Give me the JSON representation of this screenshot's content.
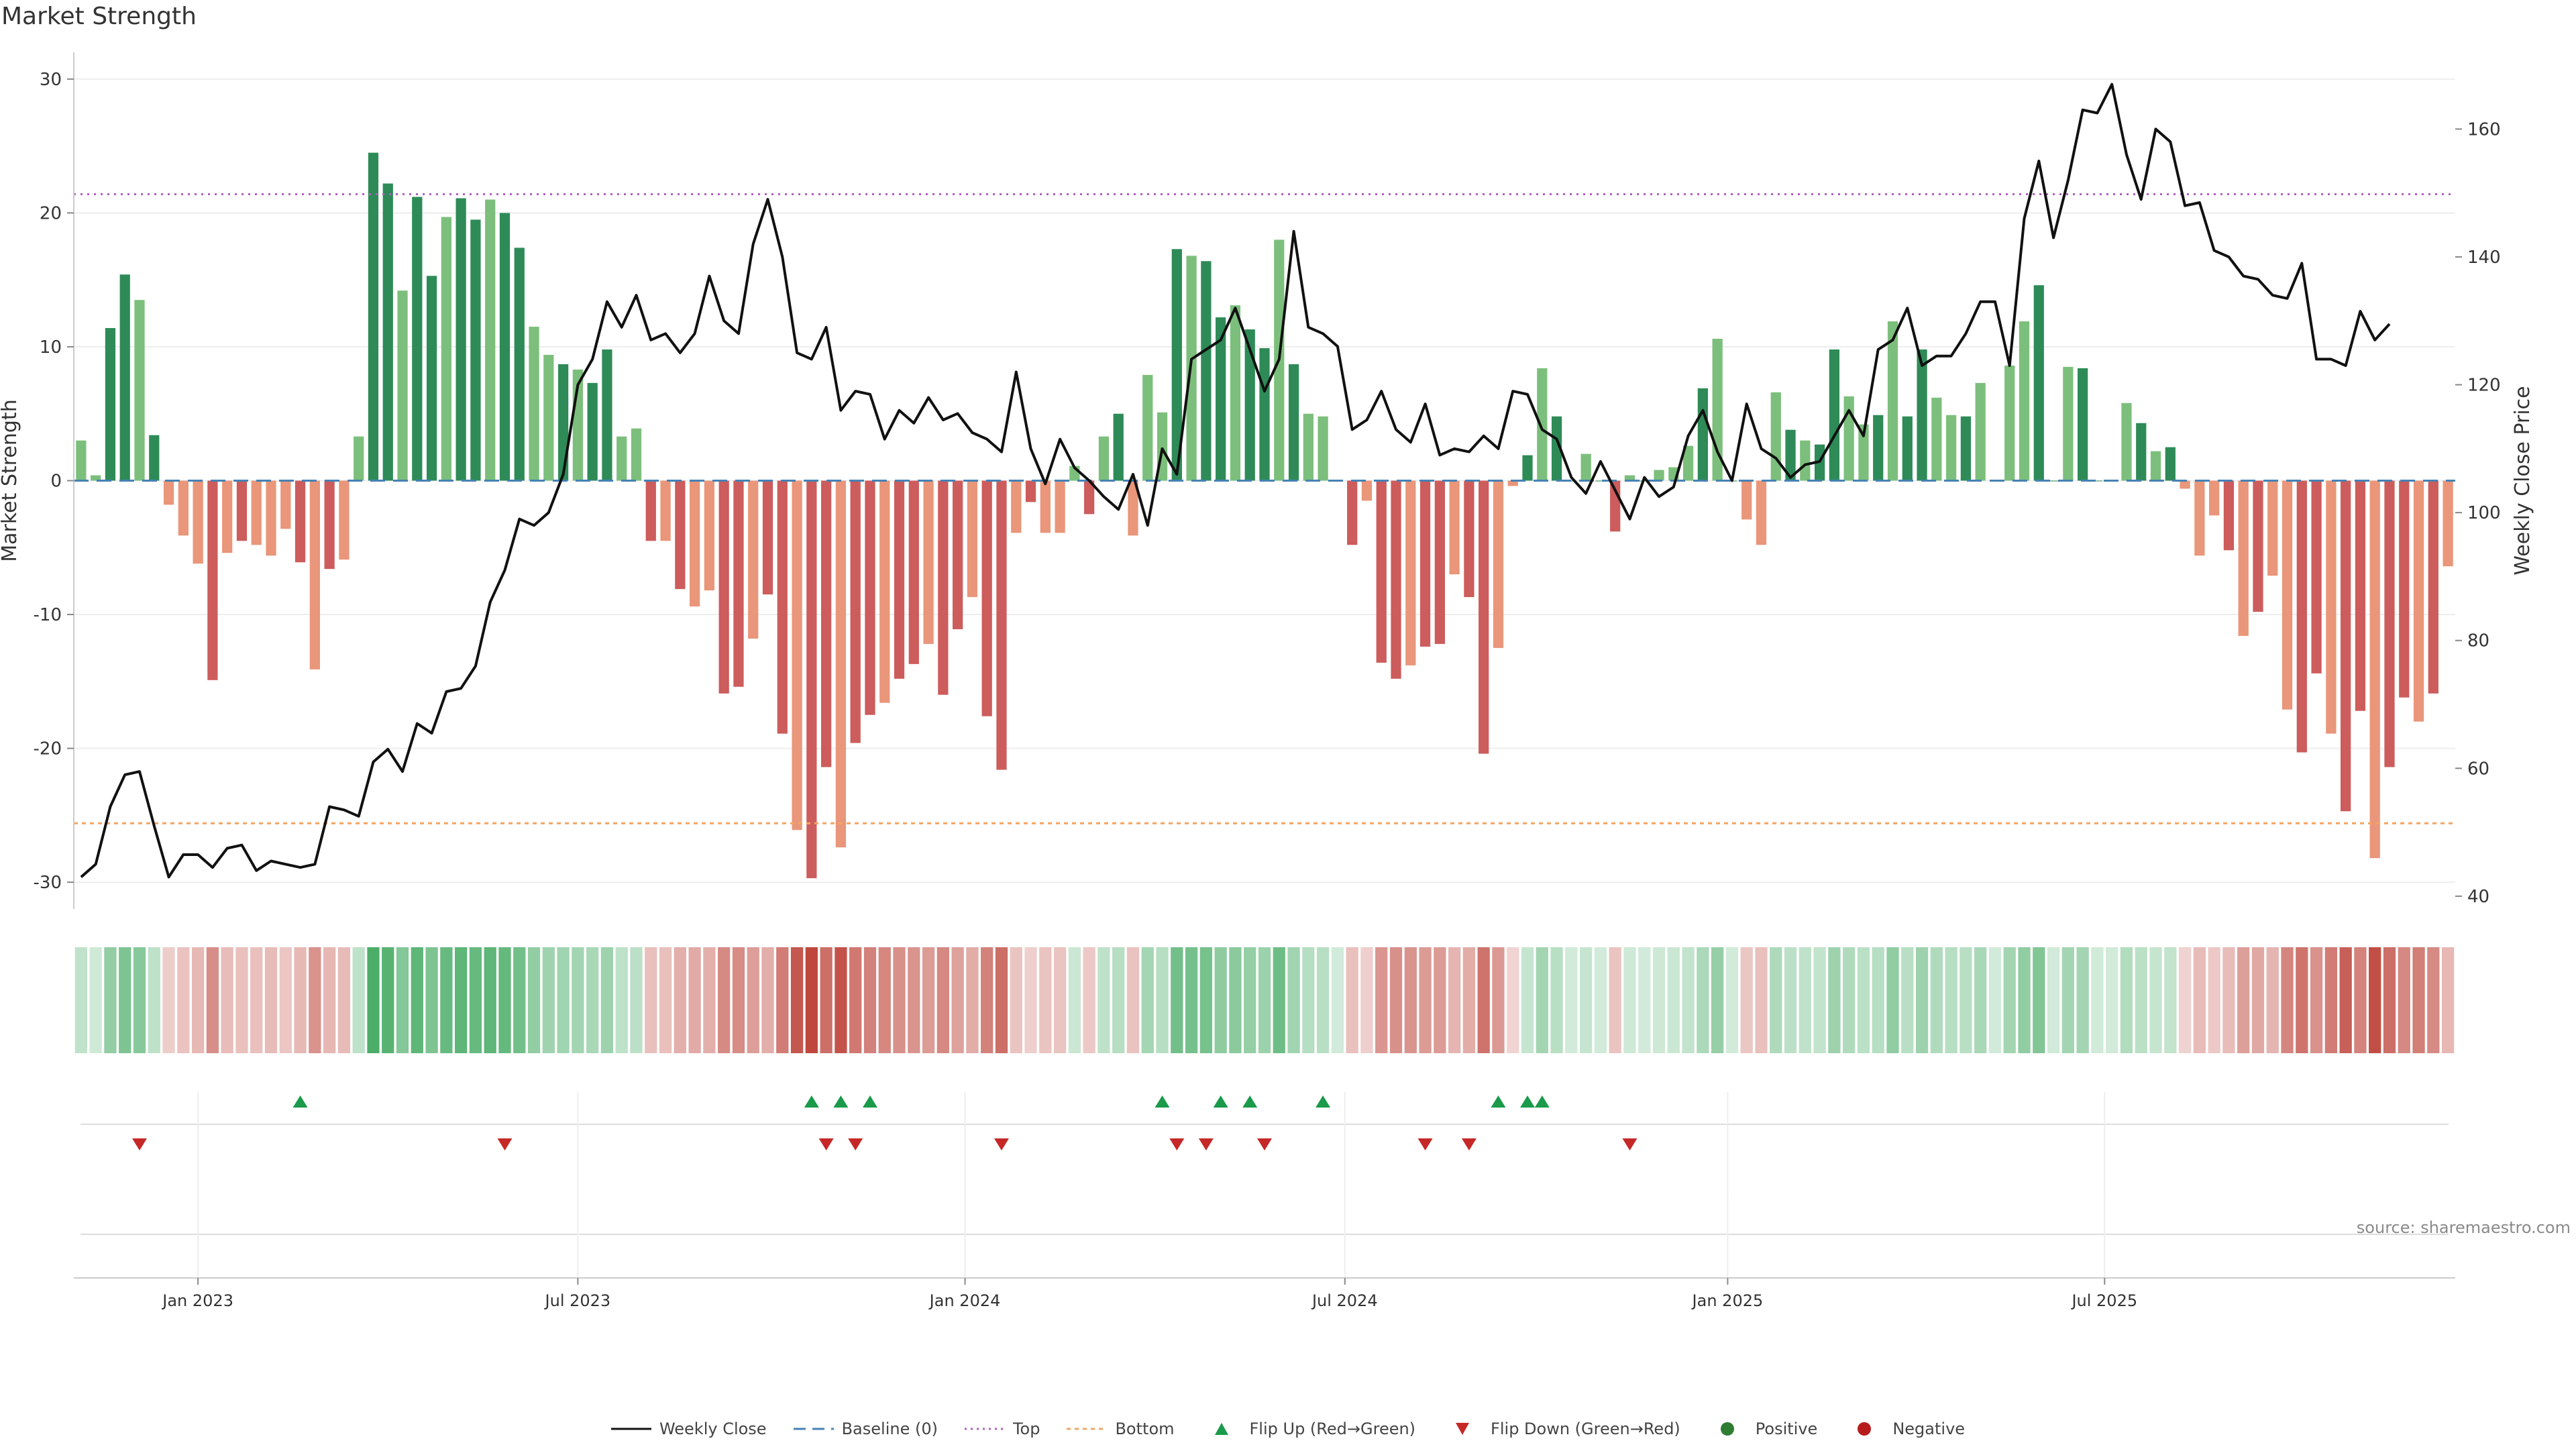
{
  "chart_data": {
    "type": "bar",
    "title": "Market Strength",
    "ylabel_left": "Market Strength",
    "ylabel_right": "Weekly Close Price",
    "source": "source: sharemaestro.com",
    "ylim_left": [
      -32,
      32
    ],
    "ylim_right": [
      38,
      172
    ],
    "yticks_left": [
      30,
      20,
      10,
      0,
      -10,
      -20,
      -30
    ],
    "yticks_right": [
      160,
      140,
      120,
      100,
      80,
      60,
      40
    ],
    "top_level": 21.4,
    "bottom_level": -25.6,
    "x_start_label": "2022-11-14",
    "x_week_count": 158,
    "x_tick_labels": [
      {
        "label": "Jan 2023",
        "week": 8
      },
      {
        "label": "Jul 2023",
        "week": 34
      },
      {
        "label": "Jan 2024",
        "week": 60.5
      },
      {
        "label": "Jul 2024",
        "week": 86.5
      },
      {
        "label": "Jan 2025",
        "week": 112.7
      },
      {
        "label": "Jul 2025",
        "week": 138.5
      }
    ],
    "strength": [
      3,
      0.4,
      11.4,
      15.4,
      13.5,
      3.4,
      -1.8,
      -4.1,
      -6.2,
      -14.9,
      -5.4,
      -4.5,
      -4.8,
      -5.6,
      -3.6,
      -6.1,
      -14.1,
      -6.6,
      -5.9,
      3.3,
      24.5,
      22.2,
      14.2,
      21.2,
      15.3,
      19.7,
      21.1,
      19.5,
      21,
      20,
      17.4,
      11.5,
      9.4,
      8.7,
      8.3,
      7.3,
      9.8,
      3.3,
      3.9,
      -4.5,
      -4.5,
      -8.1,
      -9.4,
      -8.2,
      -15.9,
      -15.4,
      -11.8,
      -8.5,
      -18.9,
      -26.1,
      -29.7,
      -21.4,
      -27.4,
      -19.6,
      -17.5,
      -16.6,
      -14.8,
      -13.7,
      -12.2,
      -16,
      -11.1,
      -8.7,
      -17.6,
      -21.6,
      -3.9,
      -1.6,
      -3.9,
      -3.9,
      1.1,
      -2.5,
      3.3,
      5,
      -4.1,
      7.9,
      5.1,
      17.3,
      16.8,
      16.4,
      12.2,
      13.1,
      11.3,
      9.9,
      18,
      8.7,
      5,
      4.8,
      0,
      -4.8,
      -1.5,
      -13.6,
      -14.8,
      -13.8,
      -12.4,
      -12.2,
      -7,
      -8.7,
      -20.4,
      -12.5,
      -0.4,
      1.9,
      8.4,
      4.8,
      0,
      2,
      0,
      -3.8,
      0.4,
      0,
      0.8,
      1,
      2.6,
      6.9,
      10.6,
      0,
      -2.9,
      -4.8,
      6.6,
      3.8,
      3,
      2.7,
      9.8,
      6.3,
      4.2,
      4.9,
      11.9,
      4.8,
      9.8,
      6.2,
      4.9,
      4.8,
      7.3,
      0,
      8.6,
      11.9,
      14.6,
      0,
      8.5,
      8.4,
      0,
      0,
      5.8,
      4.3,
      2.2,
      2.5,
      -0.6,
      -5.6,
      -2.6,
      -5.2,
      -11.6,
      -9.8,
      -7.1,
      -17.1,
      -20.3,
      -14.4,
      -18.9,
      -24.7,
      -17.2,
      -28.2,
      -21.4,
      -16.2,
      -18,
      -15.9,
      -6.4
    ],
    "weekly_close": [
      43,
      45,
      54,
      59,
      59.5,
      51,
      43,
      46.5,
      46.5,
      44.5,
      47.5,
      48,
      44,
      45.5,
      45,
      44.5,
      45,
      54,
      53.5,
      52.5,
      61,
      63,
      59.5,
      67,
      65.5,
      72,
      72.5,
      76,
      86,
      91,
      99,
      98,
      100,
      106,
      120,
      124,
      133,
      129,
      134,
      127,
      128,
      125,
      128,
      137,
      130,
      128,
      142,
      149,
      140,
      125,
      124,
      129,
      116,
      119,
      118.5,
      111.5,
      116,
      114,
      118,
      114.5,
      115.5,
      112.5,
      111.5,
      109.5,
      122,
      110,
      104.5,
      111.5,
      107,
      105,
      102.5,
      100.5,
      106,
      98,
      110,
      106,
      124,
      125.5,
      127,
      132,
      125.5,
      119,
      124,
      144,
      129,
      128,
      126,
      113,
      114.5,
      119,
      113,
      111,
      117,
      109,
      110,
      109.5,
      112,
      110,
      119,
      118.5,
      113,
      111.5,
      105.5,
      103,
      108,
      103.5,
      99,
      105.5,
      102.5,
      104,
      112,
      116,
      109.5,
      105,
      117,
      110,
      108.5,
      105.5,
      107.5,
      108,
      112,
      116,
      112,
      125.5,
      127,
      132,
      123,
      124.5,
      124.5,
      128,
      133,
      133,
      123,
      146,
      155,
      143,
      152,
      163,
      162.5,
      167,
      156,
      149,
      160,
      158,
      148,
      148.5,
      141,
      140,
      137,
      136.5,
      134,
      133.5,
      139,
      124,
      124,
      123,
      131.5,
      127,
      129.5
    ],
    "flips_up_weeks": [
      15,
      50,
      52,
      54,
      74,
      78,
      80,
      85,
      97,
      99,
      100
    ],
    "flips_down_weeks": [
      4,
      29,
      51,
      53,
      63,
      75,
      77,
      81,
      92,
      95,
      106
    ],
    "markers_extra_weeks": [],
    "legend": [
      "Weekly Close",
      "Baseline (0)",
      "Top",
      "Bottom",
      "Flip Up (Red→Green)",
      "Flip Down (Green→Red)",
      "Positive",
      "Negative"
    ],
    "colors": {
      "positive_dark": "#2e8b57",
      "positive_light": "#7cbf7c",
      "negative_dark": "#cd5c5c",
      "negative_light": "#e9967a",
      "top_line": "#b05fc0",
      "bottom_line": "#f4a460",
      "baseline": "#4682b4",
      "price_line": "#111111",
      "flip_up": "#1a9a4a",
      "flip_down": "#c62828",
      "positive_dot": "#2e7d32",
      "negative_dot": "#b71c1c"
    }
  }
}
